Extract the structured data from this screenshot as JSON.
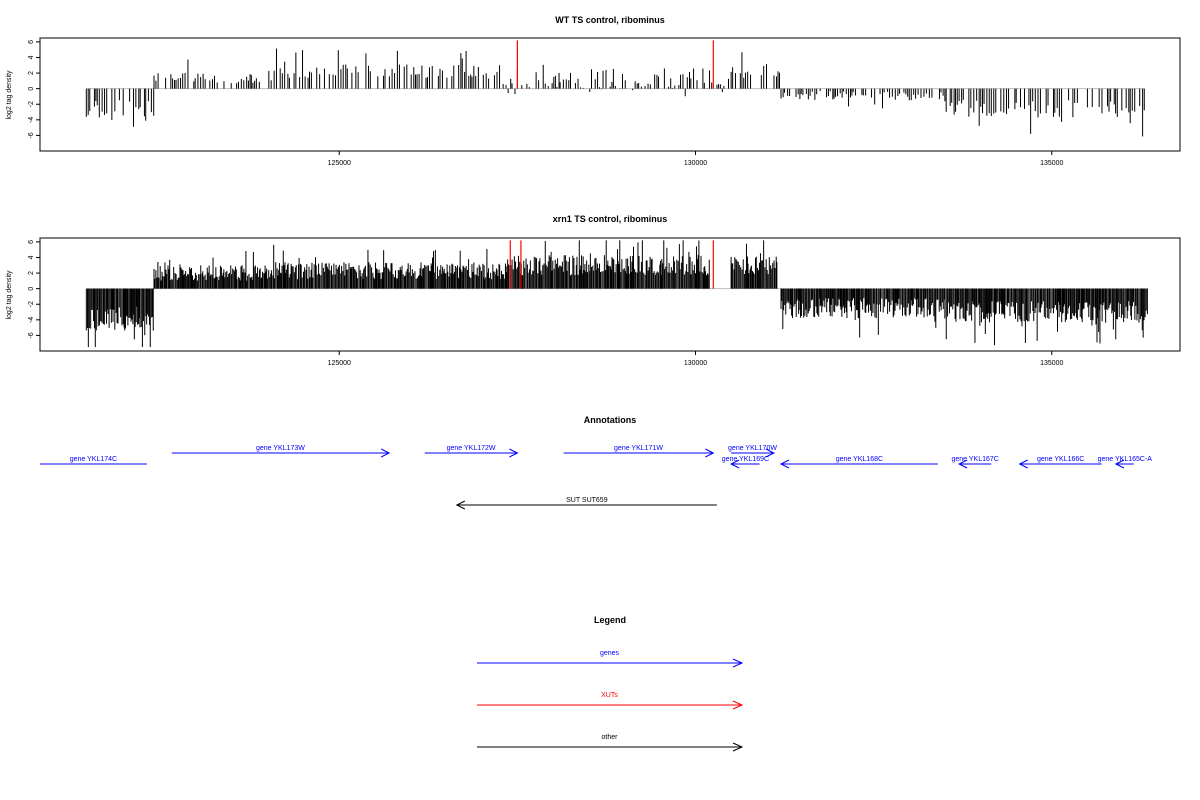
{
  "colors": {
    "genes": "#0000ff",
    "xuts": "#ff0000",
    "other": "#000000",
    "axis": "#000000",
    "baseline": "#bebebe"
  },
  "chart_data": [
    {
      "type": "bar",
      "title": "WT TS control, ribominus",
      "xlabel": "",
      "ylabel": "log2 tag density",
      "xlim": [
        120800,
        136800
      ],
      "ylim": [
        -8,
        6.5
      ],
      "xticks": [
        125000,
        130000,
        135000
      ],
      "yticks": [
        6,
        4,
        2,
        0,
        -2,
        -4,
        -6
      ],
      "grid": false,
      "density": "sparse",
      "segments": [
        {
          "start": 121450,
          "end": 122400,
          "level": -2.8,
          "var": 1.4
        },
        {
          "start": 122400,
          "end": 124050,
          "level": 1.5,
          "var": 0.8
        },
        {
          "start": 124050,
          "end": 127250,
          "level": 2.2,
          "var": 0.9
        },
        {
          "start": 127300,
          "end": 128100,
          "level": 0.6,
          "var": 1.5
        },
        {
          "start": 128100,
          "end": 130500,
          "level": 1.0,
          "var": 1.6
        },
        {
          "start": 130500,
          "end": 131200,
          "level": 2.3,
          "var": 0.9
        },
        {
          "start": 131200,
          "end": 133500,
          "level": -0.9,
          "var": 0.6
        },
        {
          "start": 133500,
          "end": 136300,
          "level": -2.5,
          "var": 1.2
        }
      ],
      "highlight_lines": [
        {
          "x": 127500,
          "y": 6.2,
          "color": "#ff0000"
        },
        {
          "x": 130250,
          "y": 6.2,
          "color": "#ff0000"
        }
      ]
    },
    {
      "type": "bar",
      "title": "xrn1 TS control, ribominus",
      "xlabel": "",
      "ylabel": "log2 tag density",
      "xlim": [
        120800,
        136800
      ],
      "ylim": [
        -8,
        6.5
      ],
      "xticks": [
        125000,
        130000,
        135000
      ],
      "yticks": [
        6,
        4,
        2,
        0,
        -2,
        -4,
        -6
      ],
      "grid": false,
      "density": "dense",
      "segments": [
        {
          "start": 121450,
          "end": 122400,
          "level": -3.8,
          "var": 1.6
        },
        {
          "start": 122400,
          "end": 124050,
          "level": 2.0,
          "var": 1.0
        },
        {
          "start": 124050,
          "end": 127350,
          "level": 2.3,
          "var": 1.1
        },
        {
          "start": 127350,
          "end": 130200,
          "level": 3.0,
          "var": 1.3
        },
        {
          "start": 130500,
          "end": 131150,
          "level": 3.0,
          "var": 1.2
        },
        {
          "start": 131200,
          "end": 133500,
          "level": -2.5,
          "var": 1.3
        },
        {
          "start": 133500,
          "end": 136350,
          "level": -3.0,
          "var": 1.4
        }
      ],
      "highlight_lines": [
        {
          "x": 127400,
          "y": 6.2,
          "color": "#ff0000"
        },
        {
          "x": 127550,
          "y": 6.2,
          "color": "#ff0000"
        },
        {
          "x": 130250,
          "y": 6.2,
          "color": "#ff0000"
        }
      ]
    }
  ],
  "annotations": {
    "title": "Annotations",
    "xlim": [
      120800,
      136800
    ],
    "features": [
      {
        "label": "gene YKL174C",
        "start": 120800,
        "end": 122300,
        "row": 2,
        "dir": "none",
        "color": "#0000ff"
      },
      {
        "label": "gene YKL173W",
        "start": 122650,
        "end": 125700,
        "row": 1,
        "dir": "right",
        "color": "#0000ff"
      },
      {
        "label": "gene YKL172W",
        "start": 126200,
        "end": 127500,
        "row": 1,
        "dir": "right",
        "color": "#0000ff"
      },
      {
        "label": "gene YKL171W",
        "start": 128150,
        "end": 130250,
        "row": 1,
        "dir": "right",
        "color": "#0000ff"
      },
      {
        "label": "gene YKL170W",
        "start": 130500,
        "end": 131100,
        "row": 1,
        "dir": "right",
        "color": "#0000ff"
      },
      {
        "label": "gene YKL169C",
        "start": 130500,
        "end": 130900,
        "row": 2,
        "dir": "left",
        "color": "#0000ff"
      },
      {
        "label": "gene YKL168C",
        "start": 131200,
        "end": 133400,
        "row": 2,
        "dir": "left",
        "color": "#0000ff"
      },
      {
        "label": "gene YKL167C",
        "start": 133700,
        "end": 134150,
        "row": 2,
        "dir": "left",
        "color": "#0000ff"
      },
      {
        "label": "gene YKL166C",
        "start": 134550,
        "end": 135700,
        "row": 2,
        "dir": "left",
        "color": "#0000ff"
      },
      {
        "label": "gene YKL165C-A",
        "start": 135900,
        "end": 136150,
        "row": 2,
        "dir": "left",
        "color": "#0000ff"
      },
      {
        "label": "SUT SUT659",
        "start": 126650,
        "end": 130300,
        "row": 3,
        "dir": "left",
        "color": "#000000"
      }
    ]
  },
  "legend": {
    "title": "Legend",
    "items": [
      {
        "label": "genes",
        "color": "#0000ff"
      },
      {
        "label": "XUTs",
        "color": "#ff0000"
      },
      {
        "label": "other",
        "color": "#000000"
      }
    ]
  }
}
